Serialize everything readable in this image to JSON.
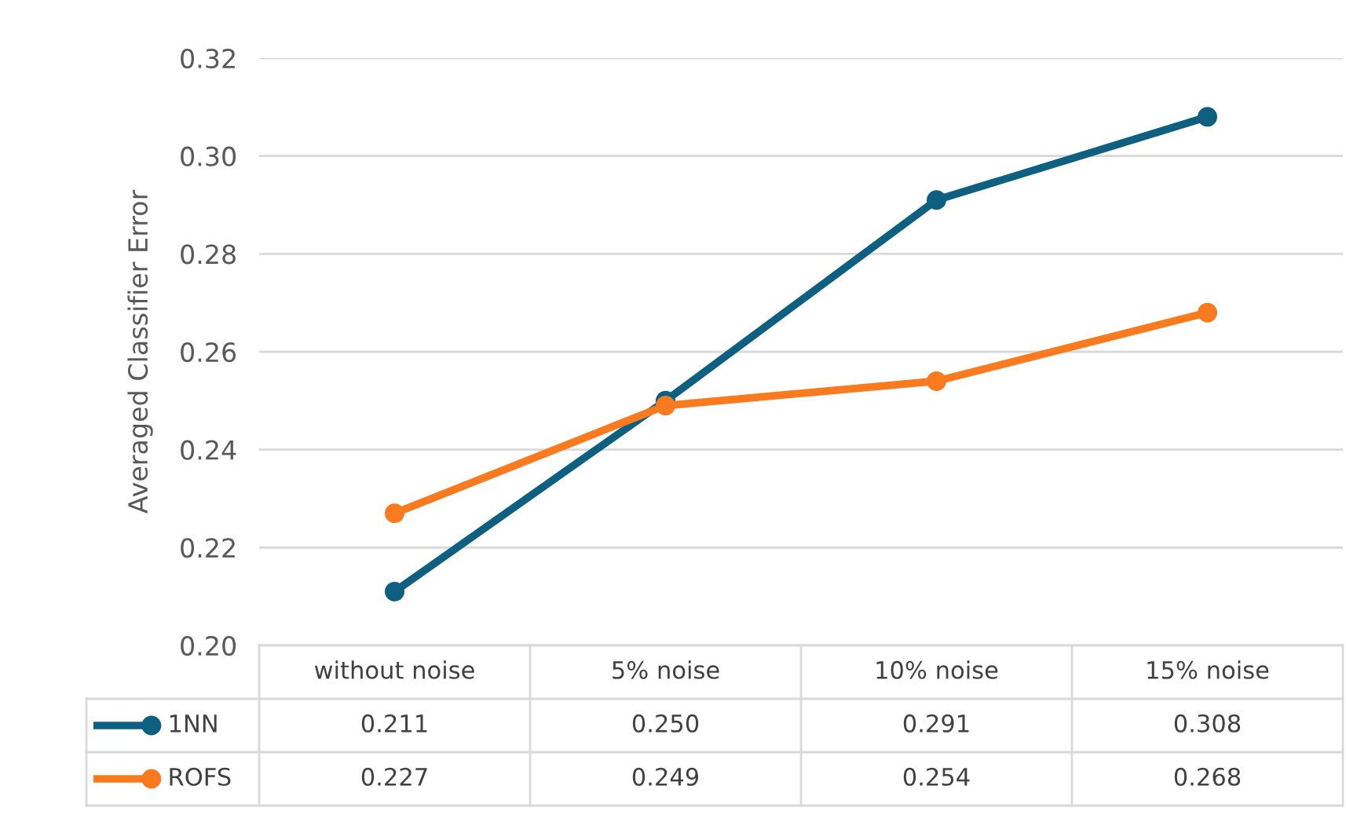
{
  "chart_data": {
    "type": "line",
    "ylabel": "Averaged Classifier Error",
    "categories": [
      "without noise",
      "5% noise",
      "10% noise",
      "15% noise"
    ],
    "series": [
      {
        "name": "1NN",
        "color": "#0f5f80",
        "values": [
          0.211,
          0.25,
          0.291,
          0.308
        ],
        "value_labels": [
          "0.211",
          "0.250",
          "0.291",
          "0.308"
        ]
      },
      {
        "name": "ROFS",
        "color": "#f97a1f",
        "values": [
          0.227,
          0.249,
          0.254,
          0.268
        ],
        "value_labels": [
          "0.227",
          "0.249",
          "0.254",
          "0.268"
        ]
      }
    ],
    "ylim": [
      0.2,
      0.32
    ],
    "yticks": [
      {
        "value": 0.2,
        "label": "0.20"
      },
      {
        "value": 0.22,
        "label": "0.22"
      },
      {
        "value": 0.24,
        "label": "0.24"
      },
      {
        "value": 0.26,
        "label": "0.26"
      },
      {
        "value": 0.28,
        "label": "0.28"
      },
      {
        "value": 0.3,
        "label": "0.30"
      },
      {
        "value": 0.32,
        "label": "0.32"
      }
    ],
    "grid": "y",
    "marker": "circle",
    "line_style": "solid",
    "legend": "bottom"
  }
}
